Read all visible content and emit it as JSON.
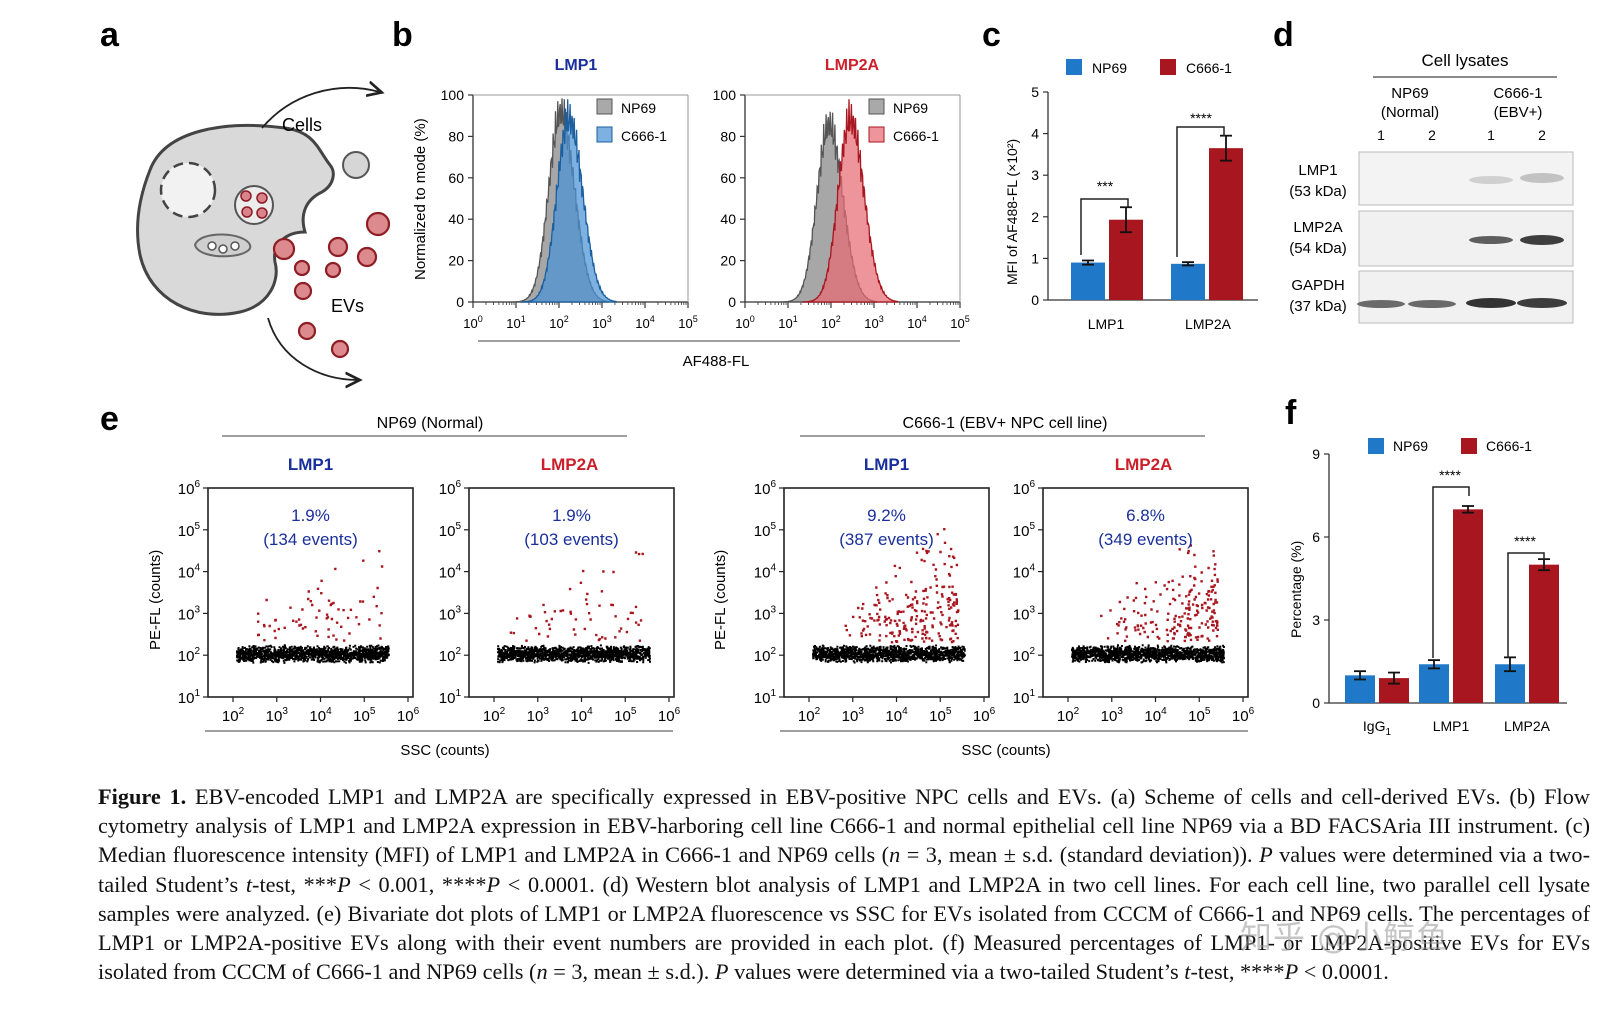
{
  "colors": {
    "blue": "#1f78c8",
    "red": "#a8161f",
    "gray": "#8a8a8a",
    "blue_title": "#1a2f9c",
    "red_title": "#cc1f2a"
  },
  "panel_letters": {
    "a": "a",
    "b": "b",
    "c": "c",
    "d": "d",
    "e": "e",
    "f": "f"
  },
  "panel_a": {
    "cells_label": "Cells",
    "evs_label": "EVs"
  },
  "panel_b": {
    "ylabel": "Normalized to mode (%)",
    "xlabel": "AF488-FL",
    "yticks": [
      "100",
      "80",
      "60",
      "40",
      "20",
      "0"
    ],
    "xticks": [
      "10",
      "10",
      "10",
      "10",
      "10",
      "10"
    ],
    "xtick_exp": [
      "0",
      "1",
      "2",
      "3",
      "4",
      "5"
    ],
    "left": {
      "title": "LMP1",
      "legend": [
        "NP69",
        "C666-1"
      ]
    },
    "right": {
      "title": "LMP2A",
      "legend": [
        "NP69",
        "C666-1"
      ]
    }
  },
  "chart_data": [
    {
      "panel": "b-LMP1",
      "type": "area",
      "title": "LMP1",
      "xlabel": "AF488-FL",
      "ylabel": "Normalized to mode (%)",
      "xscale": "log",
      "xlim": [
        1,
        100000
      ],
      "ylim": [
        0,
        100
      ],
      "series": [
        {
          "name": "NP69",
          "peak_x": 110,
          "peak_y": 91
        },
        {
          "name": "C666-1",
          "peak_x": 170,
          "peak_y": 88
        }
      ]
    },
    {
      "panel": "b-LMP2A",
      "type": "area",
      "title": "LMP2A",
      "xlabel": "AF488-FL",
      "ylabel": "Normalized to mode (%)",
      "xscale": "log",
      "xlim": [
        1,
        100000
      ],
      "ylim": [
        0,
        100
      ],
      "series": [
        {
          "name": "NP69",
          "peak_x": 90,
          "peak_y": 85
        },
        {
          "name": "C666-1",
          "peak_x": 280,
          "peak_y": 88
        }
      ]
    },
    {
      "panel": "c",
      "type": "bar",
      "categories": [
        "LMP1",
        "LMP2A"
      ],
      "ylabel": "MFI of AF488-FL (×10²)",
      "ylim": [
        0,
        5
      ],
      "yticks": [
        "0",
        "1",
        "2",
        "3",
        "4",
        "5"
      ],
      "series": [
        {
          "name": "NP69",
          "values": [
            0.9,
            0.87
          ],
          "errors": [
            0.05,
            0.04
          ]
        },
        {
          "name": "C666-1",
          "values": [
            1.93,
            3.65
          ],
          "errors": [
            0.3,
            0.3
          ]
        }
      ],
      "significance": [
        "***",
        "****"
      ]
    },
    {
      "panel": "e",
      "type": "scatter",
      "xlabel": "SSC (counts)",
      "ylabel": "PE-FL (counts)",
      "xscale": "log",
      "yscale": "log",
      "plots": [
        {
          "group": "NP69 (Normal)",
          "title": "LMP1",
          "percent": "1.9%",
          "events": "(134 events)"
        },
        {
          "group": "NP69 (Normal)",
          "title": "LMP2A",
          "percent": "1.9%",
          "events": "(103 events)"
        },
        {
          "group": "C666-1 (EBV+ NPC cell line)",
          "title": "LMP1",
          "percent": "9.2%",
          "events": "(387 events)"
        },
        {
          "group": "C666-1 (EBV+ NPC cell line)",
          "title": "LMP2A",
          "percent": "6.8%",
          "events": "(349 events)"
        }
      ]
    },
    {
      "panel": "f",
      "type": "bar",
      "categories": [
        "IgG1",
        "LMP1",
        "LMP2A"
      ],
      "ylabel": "Percentage (%)",
      "ylim": [
        0,
        9
      ],
      "yticks": [
        "0",
        "3",
        "6",
        "9"
      ],
      "series": [
        {
          "name": "NP69",
          "values": [
            1.0,
            1.4,
            1.4
          ],
          "errors": [
            0.15,
            0.15,
            0.25
          ]
        },
        {
          "name": "C666-1",
          "values": [
            0.9,
            7.0,
            5.0
          ],
          "errors": [
            0.2,
            0.12,
            0.2
          ]
        }
      ],
      "significance": [
        "****",
        "****"
      ]
    }
  ],
  "panel_c": {
    "legend": [
      "NP69",
      "C666-1"
    ],
    "ylabel": "MFI of AF488-FL (×10²)",
    "yticks": [
      "5",
      "4",
      "3",
      "2",
      "1",
      "0"
    ],
    "categories": [
      "LMP1",
      "LMP2A"
    ],
    "sig1": "***",
    "sig2": "****"
  },
  "panel_d": {
    "header": "Cell lysates",
    "group1": "NP69",
    "group1_sub": "(Normal)",
    "group2": "C666-1",
    "group2_sub": "(EBV+)",
    "lanes": [
      "1",
      "2",
      "1",
      "2"
    ],
    "rows": [
      {
        "name": "LMP1",
        "kda": "(53 kDa)"
      },
      {
        "name": "LMP2A",
        "kda": "(54 kDa)"
      },
      {
        "name": "GAPDH",
        "kda": "(37 kDa)"
      }
    ]
  },
  "panel_e": {
    "group1": "NP69 (Normal)",
    "group2": "C666-1 (EBV+ NPC cell line)",
    "titles": [
      "LMP1",
      "LMP2A",
      "LMP1",
      "LMP2A"
    ],
    "percents": [
      "1.9%",
      "1.9%",
      "9.2%",
      "6.8%"
    ],
    "events": [
      "(134 events)",
      "(103 events)",
      "(387 events)",
      "(349 events)"
    ],
    "ylabel": "PE-FL (counts)",
    "xlabel": "SSC (counts)",
    "yticks_base": "10",
    "yticks_exp": [
      "6",
      "5",
      "4",
      "3",
      "2",
      "1"
    ],
    "xticks_exp": [
      "2",
      "3",
      "4",
      "5",
      "6"
    ]
  },
  "panel_f": {
    "legend": [
      "NP69",
      "C666-1"
    ],
    "ylabel": "Percentage (%)",
    "yticks": [
      "9",
      "6",
      "3",
      "0"
    ],
    "cat1": "IgG",
    "cat1_sub": "1",
    "cat2": "LMP1",
    "cat3": "LMP2A",
    "sig": "****"
  },
  "caption": {
    "label": "Figure 1.",
    "s1": " EBV-encoded LMP1 and LMP2A are specifically expressed in EBV-positive NPC cells and EVs. (a) Scheme of cells and cell-derived EVs. (b) Flow cytometry analysis of LMP1 and LMP2A expression in EBV-harboring cell line C666-1 and normal epithelial cell line NP69 via a BD FACSAria III instrument. (c) Median fluorescence intensity (MFI) of LMP1 and LMP2A in C666-1 and NP69 cells (",
    "n1": "n",
    "s2": " = 3, mean ± s.d. (standard deviation)). ",
    "p1": "P",
    "s3": " values were determined via a two-tailed Student’s ",
    "t1": "t",
    "s4": "-test, ***",
    "p2": "P",
    "s5": " < 0.001, ****",
    "p3": "P",
    "s6": " < 0.0001. (d) Western blot analysis of LMP1 and LMP2A in two cell lines. For each cell line, two parallel cell lysate samples were analyzed. (e) Bivariate dot plots of LMP1 or LMP2A fluorescence vs SSC for EVs isolated from CCCM of C666-1 and NP69 cells. The percentages of LMP1 or LMP2A-positive EVs along with their event numbers are provided in each plot. (f) Measured percentages of LMP1- or LMP2A-positive EVs for EVs isolated from CCCM of C666-1 and NP69 cells (",
    "n2": "n",
    "s7": " = 3, mean ± s.d.). ",
    "p4": "P",
    "s8": " values were determined via a two-tailed Student’s ",
    "t2": "t",
    "s9": "-test, ****",
    "p5": "P",
    "s10": " < 0.0001."
  },
  "watermark": "知乎 @小鲸鱼"
}
